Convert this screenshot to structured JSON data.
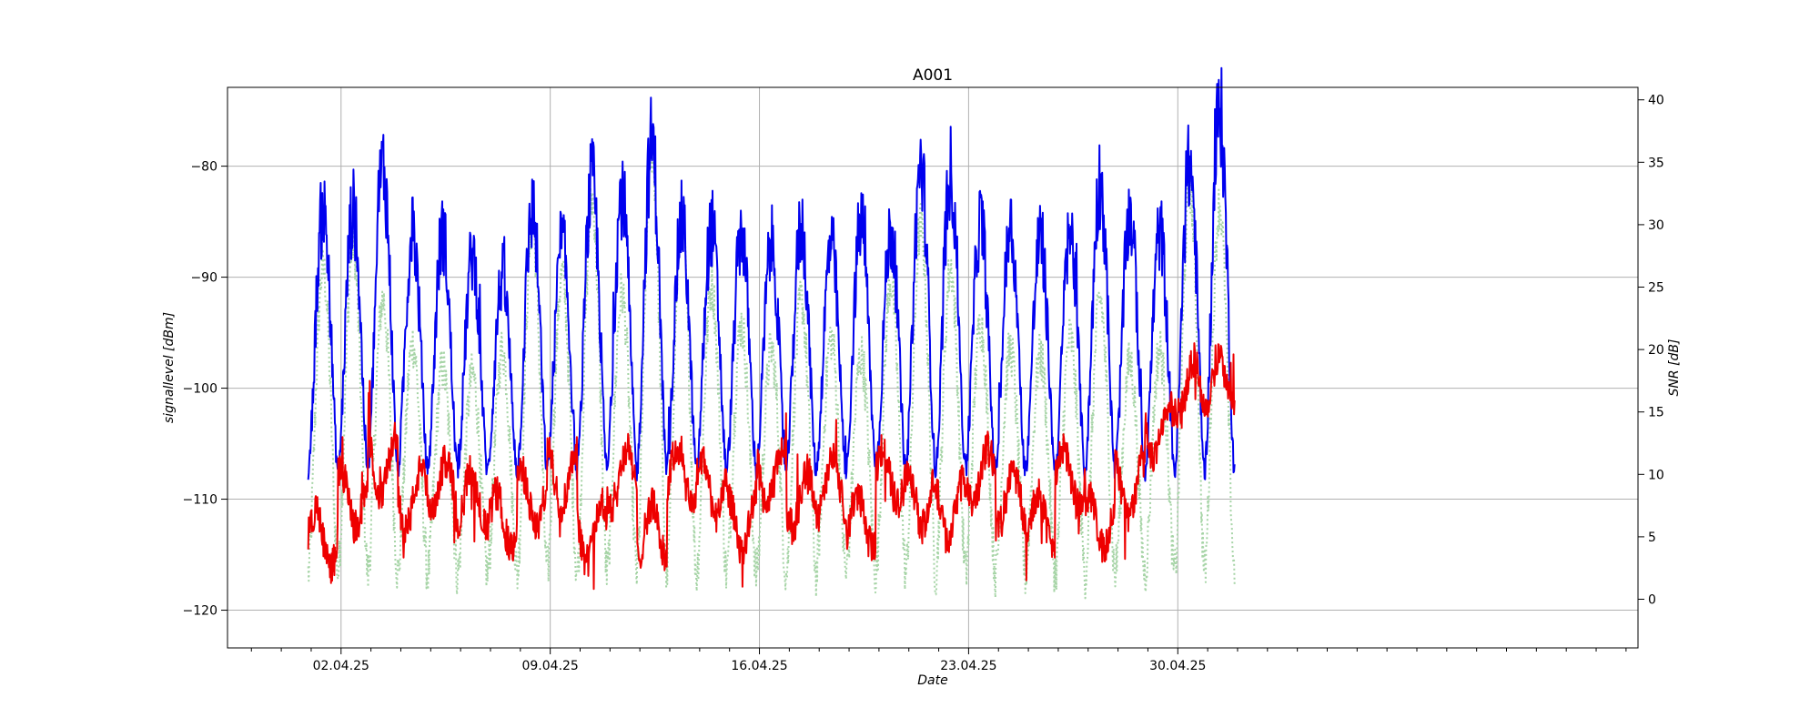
{
  "chart_data": {
    "type": "line",
    "title": "A001",
    "xlabel": "Date",
    "ylabel_left": "signallevel [dBm]",
    "ylabel_right": "SNR [dB]",
    "x_range_days": [
      -2.8,
      44.4
    ],
    "x_major_ticks": [
      {
        "day": 1,
        "label": "02.04.25"
      },
      {
        "day": 8,
        "label": "09.04.25"
      },
      {
        "day": 15,
        "label": "16.04.25"
      },
      {
        "day": 22,
        "label": "23.04.25"
      },
      {
        "day": 29,
        "label": "30.04.25"
      }
    ],
    "y_left_range": [
      -123.4,
      -72.9
    ],
    "y_left_ticks": [
      -80,
      -90,
      -100,
      -110,
      -120
    ],
    "y_right_range": [
      -3.9,
      41.0
    ],
    "y_right_ticks": [
      0,
      5,
      10,
      15,
      20,
      25,
      30,
      35,
      40
    ],
    "grid": true,
    "series": [
      {
        "name": "SNR",
        "axis": "right",
        "color": "#a6d4a6",
        "style": "dotted",
        "x_start_day": -0.1,
        "x_end_day": 30.9,
        "base": 2,
        "peaks": [
          26.5,
          28.5,
          24.0,
          20.5,
          18.5,
          18.0,
          20.0,
          30.0,
          26.0,
          32.0,
          24.5,
          36.0,
          30.0,
          25.0,
          22.0,
          20.0,
          24.0,
          21.0,
          19.5,
          25.5,
          30.0,
          26.5,
          22.0,
          20.0,
          19.5,
          21.0,
          24.0,
          19.0,
          20.0,
          33.0,
          31.5,
          24.0,
          19.5,
          17.5,
          14.0,
          19.5,
          22.0
        ]
      },
      {
        "name": "signallevel",
        "axis": "left",
        "color": "#0000ee",
        "style": "solid",
        "x_start_day": -0.1,
        "x_end_day": 30.9,
        "base": -107.5,
        "peaks": [
          -84.0,
          -84.0,
          -80.0,
          -86.0,
          -86.0,
          -88.0,
          -90.0,
          -84.0,
          -87.0,
          -81.5,
          -82.5,
          -78.0,
          -85.0,
          -85.5,
          -86.0,
          -87.0,
          -85.5,
          -87.0,
          -85.0,
          -86.0,
          -80.0,
          -80.5,
          -85.0,
          -85.5,
          -86.5,
          -86.0,
          -81.5,
          -84.5,
          -86.0,
          -80.0,
          -75.0,
          -82.0,
          -86.0,
          -87.0,
          -88.0,
          -79.0,
          -84.0
        ]
      },
      {
        "name": "noise",
        "axis": "left",
        "color": "#ee0000",
        "style": "solid",
        "x_start_day": -0.1,
        "x_end_day": 30.9,
        "levels": [
          -113.5,
          -110.0,
          -107.0,
          -110.0,
          -109.0,
          -110.0,
          -112.0,
          -110.0,
          -108.0,
          -113.0,
          -108.0,
          -113.0,
          -108.0,
          -109.0,
          -112.0,
          -108.0,
          -110.0,
          -109.0,
          -112.0,
          -108.0,
          -110.0,
          -111.0,
          -108.0,
          -110.0,
          -112.0,
          -108.0,
          -112.0,
          -109.0,
          -104.0,
          -100.0,
          -99.5,
          -101.0,
          -107.0,
          -111.0
        ]
      }
    ]
  }
}
